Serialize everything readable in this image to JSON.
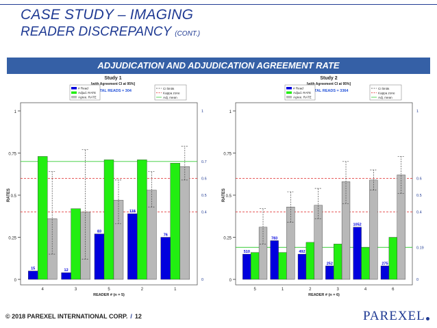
{
  "header": {
    "title": "CASE STUDY – IMAGING",
    "subtitle_main": "READER DISCREPANCY ",
    "subtitle_small": "(CONT.)",
    "banner": "ADJUDICATION AND ADJUDICATION AGREEMENT RATE"
  },
  "footer": {
    "copyright": "© 2018 PAREXEL INTERNATIONAL CORP.",
    "separator": "/",
    "page": "12",
    "logo": "PAREXEL"
  },
  "colors": {
    "read": "#0000dd",
    "adjud": "#22ee11",
    "agree": "#b8b8b8",
    "mean": "#33cc33",
    "kappa": "#dd2222",
    "title": "#1f3a93"
  },
  "chart_data": [
    {
      "type": "bar",
      "title": "Study 1",
      "subtitle": "[with Agreement CI at 95%]",
      "total_label": "TOTAL READS = 304",
      "xlabel": "READER # (n = 5)",
      "ylabel": "RATES",
      "categories": [
        "4",
        "3",
        "5",
        "2",
        "1"
      ],
      "ylim": [
        0,
        1
      ],
      "yticks": [
        "0",
        "0.25",
        "0.5",
        "0.75",
        "1"
      ],
      "right_axis_labels": [
        {
          "value": 0.7,
          "label": "0.7"
        },
        {
          "value": 0.6,
          "label": "0.6"
        },
        {
          "value": 0.5,
          "label": "0.5"
        },
        {
          "value": 0.4,
          "label": "0.4"
        },
        {
          "value": 1,
          "label": "1"
        },
        {
          "value": 0,
          "label": "0"
        }
      ],
      "legend_left": [
        "# Read",
        "Adjud. RATE",
        "Agree. RATE"
      ],
      "legend_right": [
        "CI limits",
        "Kappa zone",
        "Adj. mean"
      ],
      "series": [
        {
          "name": "# Read",
          "values": [
            0.05,
            0.04,
            0.27,
            0.39,
            0.25
          ],
          "labels": [
            "15",
            "12",
            "83",
            "118",
            "76"
          ]
        },
        {
          "name": "Adjud. RATE",
          "values": [
            0.73,
            0.42,
            0.71,
            0.71,
            0.69
          ]
        },
        {
          "name": "Agree. RATE",
          "values": [
            0.36,
            0.4,
            0.47,
            0.53,
            0.67
          ]
        }
      ],
      "ci": [
        [
          0.15,
          0.64
        ],
        [
          0.12,
          0.77
        ],
        [
          0.33,
          0.59
        ],
        [
          0.43,
          0.64
        ],
        [
          0.59,
          0.79
        ]
      ],
      "adj_mean": 0.7,
      "kappa": [
        0.6,
        0.4
      ]
    },
    {
      "type": "bar",
      "title": "Study 2",
      "subtitle": "[with Agreement CI at 95%]",
      "total_label": "TOTAL READS = 3364",
      "xlabel": "READER # (n = 6)",
      "ylabel": "RATES",
      "categories": [
        "5",
        "1",
        "2",
        "3",
        "4",
        "6"
      ],
      "ylim": [
        0,
        1
      ],
      "yticks": [
        "0",
        "0.25",
        "0.5",
        "0.75",
        "1"
      ],
      "right_axis_labels": [
        {
          "value": 0.6,
          "label": "0.6"
        },
        {
          "value": 0.5,
          "label": "0.5"
        },
        {
          "value": 0.4,
          "label": "0.4"
        },
        {
          "value": 0.19,
          "label": "0.19"
        },
        {
          "value": 1,
          "label": "1"
        },
        {
          "value": 0,
          "label": "0"
        }
      ],
      "legend_left": [
        "# Read",
        "Adjud. RATE",
        "Agree. RATE"
      ],
      "legend_right": [
        "CI limits",
        "Kappa zone",
        "Adj. mean"
      ],
      "series": [
        {
          "name": "# Read",
          "values": [
            0.15,
            0.23,
            0.15,
            0.08,
            0.31,
            0.08
          ],
          "labels": [
            "510",
            "783",
            "492",
            "252",
            "1052",
            "275"
          ]
        },
        {
          "name": "Adjud. RATE",
          "values": [
            0.16,
            0.16,
            0.22,
            0.21,
            0.19,
            0.25
          ]
        },
        {
          "name": "Agree. RATE",
          "values": [
            0.31,
            0.43,
            0.44,
            0.58,
            0.59,
            0.62
          ]
        }
      ],
      "ci": [
        [
          0.21,
          0.42
        ],
        [
          0.34,
          0.52
        ],
        [
          0.36,
          0.54
        ],
        [
          0.45,
          0.7
        ],
        [
          0.53,
          0.65
        ],
        [
          0.51,
          0.73
        ]
      ],
      "adj_mean": 0.19,
      "kappa": [
        0.6,
        0.4
      ]
    }
  ]
}
